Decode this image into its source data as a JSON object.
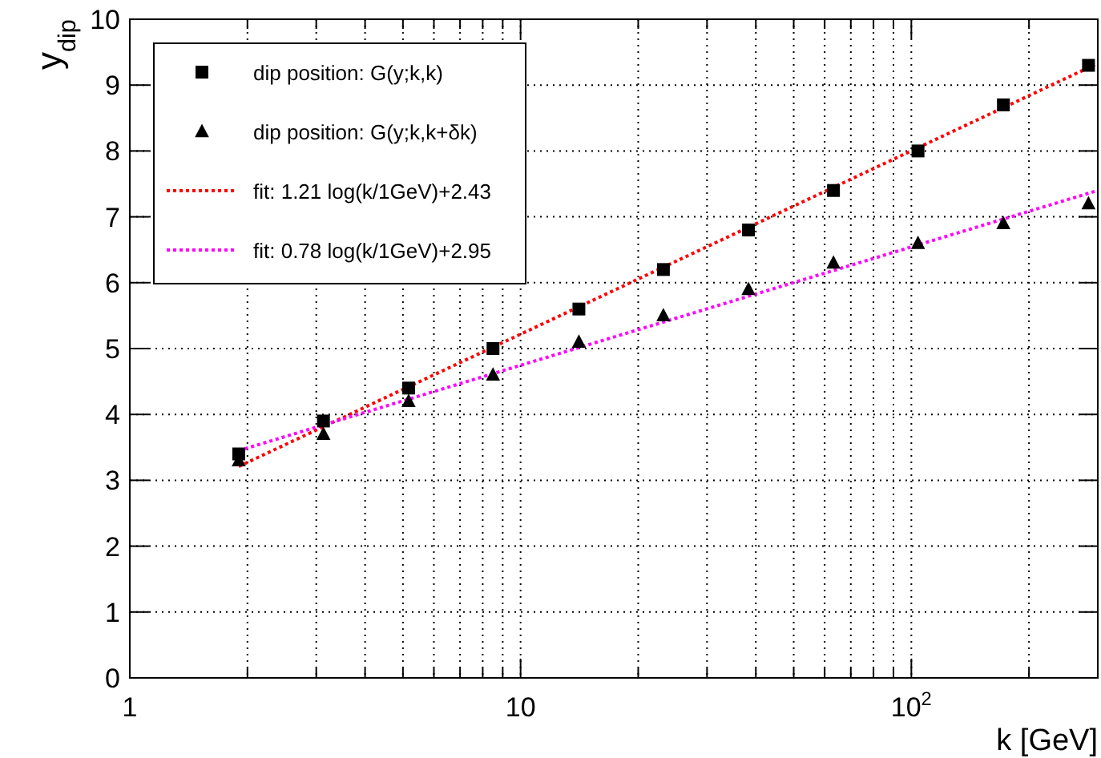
{
  "chart_data": {
    "type": "scatter",
    "xlabel": "k [GeV]",
    "ylabel": "y$_{dip}$",
    "log": "x",
    "grid": true,
    "legend": "top left",
    "xlim": [
      1,
      300
    ],
    "ylim": [
      0,
      10
    ],
    "xticks": [
      1,
      {
        "value": 2,
        "label": null
      },
      {
        "value": 3,
        "label": null
      },
      {
        "value": 4,
        "label": null
      },
      {
        "value": 5,
        "label": null
      },
      {
        "value": 6,
        "label": null
      },
      {
        "value": 7,
        "label": null
      },
      {
        "value": 8,
        "label": null
      },
      {
        "value": 9,
        "label": null
      },
      10,
      {
        "value": 20,
        "label": null
      },
      {
        "value": 30,
        "label": null
      },
      {
        "value": 40,
        "label": null
      },
      {
        "value": 50,
        "label": null
      },
      {
        "value": 60,
        "label": null
      },
      {
        "value": 70,
        "label": null
      },
      {
        "value": 80,
        "label": null
      },
      {
        "value": 90,
        "label": null
      },
      {
        "value": 100,
        "label": "10$^{2}$"
      },
      {
        "value": 200,
        "label": null
      },
      {
        "value": 300,
        "label": null
      }
    ],
    "yticks": [
      0,
      1,
      2,
      3,
      4,
      5,
      6,
      7,
      8,
      9,
      10
    ],
    "series": [
      {
        "name": "dip position: G(y;k,k)",
        "marker": "square",
        "color": "#000000",
        "x": [
          1.9,
          3.13,
          5.17,
          8.5,
          14.1,
          23.2,
          38.3,
          63.2,
          104,
          172,
          284
        ],
        "values": [
          3.4,
          3.9,
          4.4,
          5.0,
          5.6,
          6.2,
          6.8,
          7.4,
          8.0,
          8.7,
          9.3
        ]
      },
      {
        "name": "dip position: G(y;k,k+δk)",
        "marker": "triangle",
        "color": "#000000",
        "x": [
          1.9,
          3.13,
          5.17,
          8.5,
          14.1,
          23.2,
          38.3,
          63.2,
          104,
          172,
          284
        ],
        "values": [
          3.3,
          3.7,
          4.2,
          4.6,
          5.1,
          5.5,
          5.9,
          6.3,
          6.6,
          6.9,
          7.2
        ]
      },
      {
        "name": "fit: 1.21 log(k/1GeV)+2.43",
        "type": "line",
        "marker": "none",
        "line_style": "dotted",
        "color": "#ff0000",
        "x": [
          1.9,
          300
        ],
        "values": [
          3.21,
          9.33
        ]
      },
      {
        "name": "fit: 0.78 log(k/1GeV)+2.95",
        "type": "line",
        "marker": "none",
        "line_style": "dotted",
        "color": "#ff00ff",
        "x": [
          1.9,
          300
        ],
        "values": [
          3.45,
          7.4
        ]
      }
    ]
  }
}
